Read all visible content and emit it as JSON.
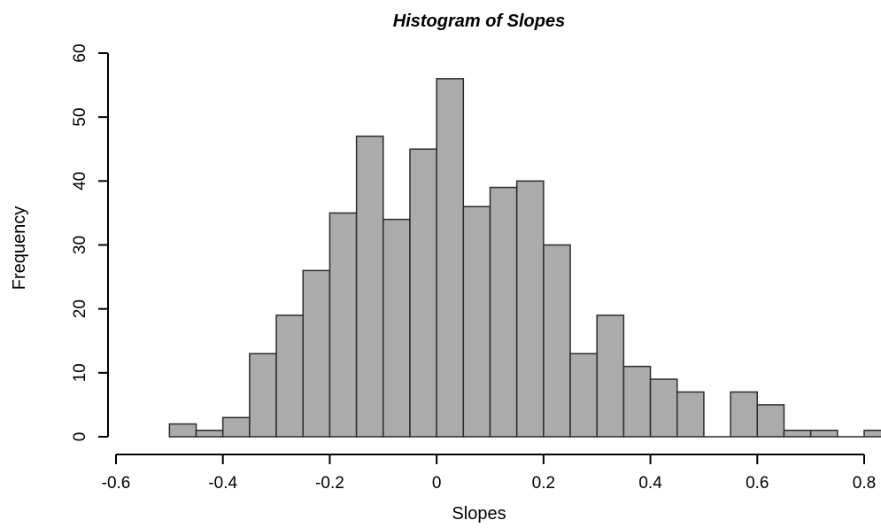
{
  "chart_data": {
    "type": "bar",
    "title": "Histogram of Slopes",
    "xlabel": "Slopes",
    "ylabel": "Frequency",
    "bin_width": 0.05,
    "bin_starts": [
      -0.5,
      -0.45,
      -0.4,
      -0.35,
      -0.3,
      -0.25,
      -0.2,
      -0.15,
      -0.1,
      -0.05,
      0.0,
      0.05,
      0.1,
      0.15,
      0.2,
      0.25,
      0.3,
      0.35,
      0.4,
      0.45,
      0.5,
      0.55,
      0.6,
      0.65,
      0.7,
      0.75,
      0.8
    ],
    "values": [
      2,
      1,
      3,
      13,
      19,
      26,
      35,
      47,
      34,
      45,
      56,
      36,
      39,
      40,
      30,
      13,
      19,
      11,
      9,
      7,
      0,
      7,
      5,
      1,
      1,
      0,
      1
    ],
    "xlim": [
      -0.6,
      0.8
    ],
    "ylim": [
      0,
      60
    ],
    "x_ticks": [
      "-0.6",
      "-0.4",
      "-0.2",
      "0",
      "0.2",
      "0.4",
      "0.6",
      "0.8"
    ],
    "y_ticks": [
      "0",
      "10",
      "20",
      "30",
      "40",
      "50",
      "60"
    ],
    "grid": false,
    "bar_color": "#ababab",
    "edge_color": "#2b2b2b"
  }
}
